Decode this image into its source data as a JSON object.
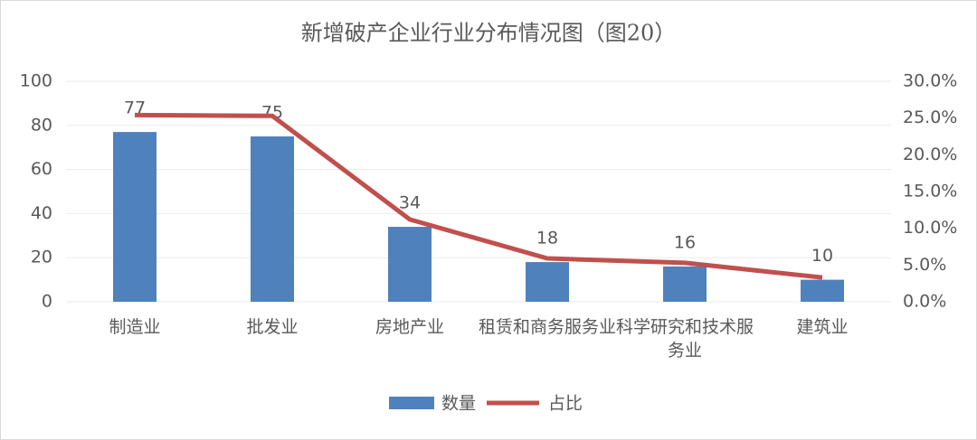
{
  "chart_data": {
    "type": "bar_line",
    "title": "新增破产企业行业分布情况图（图20）",
    "categories": [
      "制造业",
      "批发业",
      "房地产业",
      "租赁和商务服务业",
      "科学研究和技术服务业",
      "建筑业"
    ],
    "series": [
      {
        "name": "数量",
        "type": "bar",
        "color": "#4f81bd",
        "values": [
          77,
          75,
          34,
          18,
          16,
          10
        ]
      },
      {
        "name": "占比",
        "type": "line",
        "axis": "y2",
        "color": "#c0504d",
        "values": [
          25.4,
          25.3,
          11.2,
          5.9,
          5.3,
          3.3
        ]
      }
    ],
    "ylim": [
      0,
      100
    ],
    "yticks": [
      0,
      20,
      40,
      60,
      80,
      100
    ],
    "y2lim": [
      0,
      30
    ],
    "y2ticks": [
      {
        "value": 0,
        "label": "0.0%"
      },
      {
        "value": 5,
        "label": "5.0%"
      },
      {
        "value": 10,
        "label": "10.0%"
      },
      {
        "value": 15,
        "label": "15.0%"
      },
      {
        "value": 20,
        "label": "20.0%"
      },
      {
        "value": 25,
        "label": "25.0%"
      },
      {
        "value": 30,
        "label": "30.0%"
      }
    ],
    "grid": true,
    "legend": "bottom"
  }
}
